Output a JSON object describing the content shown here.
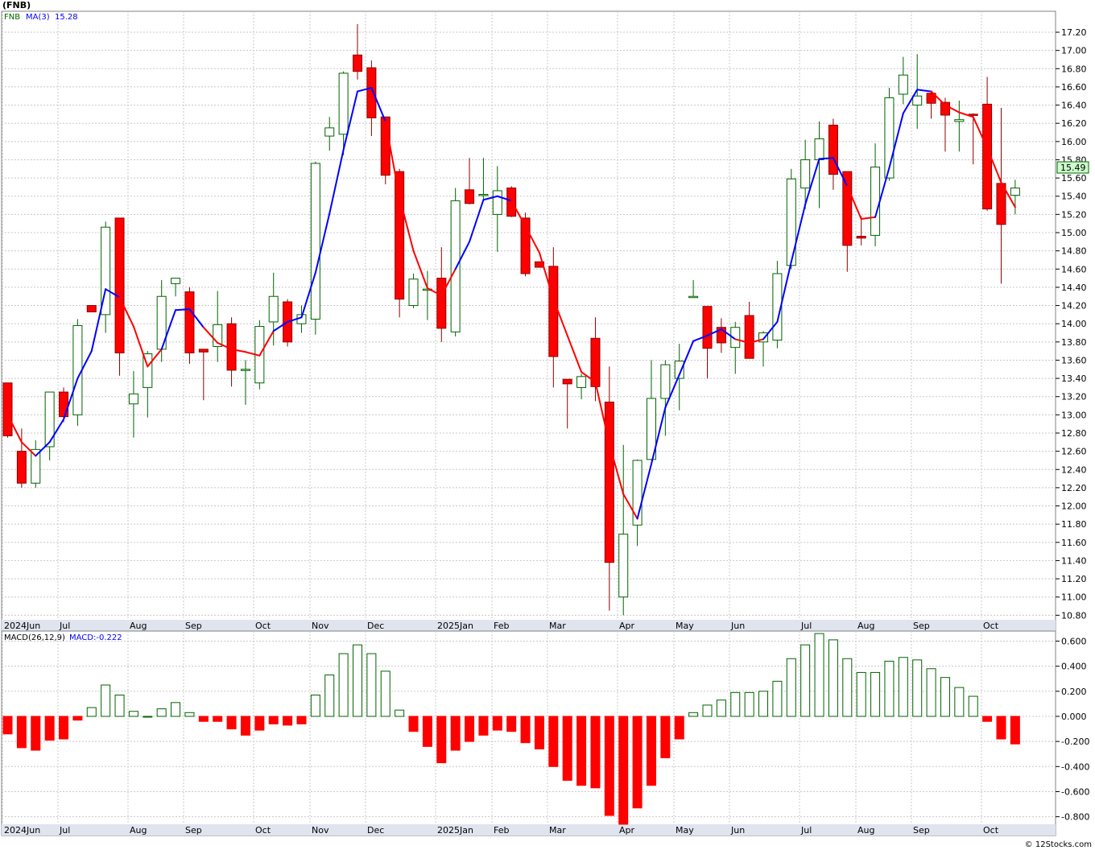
{
  "title": "(FNB)",
  "watermark": "© 12Stocks.com",
  "colors": {
    "up": "#ffffff",
    "down": "#ff0000",
    "upStroke": "#006400",
    "downStroke": "#8b0000",
    "maUp": "#0000ff",
    "maDown": "#ff0000",
    "macdPos": "#006400",
    "macdNeg": "#ff0000",
    "lastPriceBg": "#ccffcc"
  },
  "chart_data": [
    {
      "type": "candlestick",
      "legend": {
        "symbol": "FNB",
        "ma_label": "MA(3)",
        "ma_value": "15.28"
      },
      "last_price": "15.49",
      "ylim": [
        10.75,
        17.43
      ],
      "yticks": [
        "10.80",
        "11.00",
        "11.20",
        "11.40",
        "11.60",
        "11.80",
        "12.00",
        "12.20",
        "12.40",
        "12.60",
        "12.80",
        "13.00",
        "13.20",
        "13.40",
        "13.60",
        "13.80",
        "14.00",
        "14.20",
        "14.40",
        "14.60",
        "14.80",
        "15.00",
        "15.20",
        "15.40",
        "15.60",
        "15.80",
        "16.00",
        "16.20",
        "16.40",
        "16.60",
        "16.80",
        "17.00",
        "17.20"
      ],
      "months": [
        {
          "label": "2024Jun",
          "index": 0
        },
        {
          "label": "Jul",
          "index": 4
        },
        {
          "label": "Aug",
          "index": 9
        },
        {
          "label": "Sep",
          "index": 13
        },
        {
          "label": "Oct",
          "index": 18
        },
        {
          "label": "Nov",
          "index": 22
        },
        {
          "label": "Dec",
          "index": 26
        },
        {
          "label": "2025Jan",
          "index": 31
        },
        {
          "label": "Feb",
          "index": 35
        },
        {
          "label": "Mar",
          "index": 39
        },
        {
          "label": "Apr",
          "index": 44
        },
        {
          "label": "May",
          "index": 48
        },
        {
          "label": "Jun",
          "index": 52
        },
        {
          "label": "Jul",
          "index": 57
        },
        {
          "label": "Aug",
          "index": 61
        },
        {
          "label": "Sep",
          "index": 65
        },
        {
          "label": "Oct",
          "index": 70
        }
      ],
      "candles": [
        {
          "o": 13.35,
          "h": 13.35,
          "l": 12.75,
          "c": 12.77
        },
        {
          "o": 12.6,
          "h": 12.85,
          "l": 12.2,
          "c": 12.25
        },
        {
          "o": 12.25,
          "h": 12.72,
          "l": 12.2,
          "c": 12.62
        },
        {
          "o": 12.65,
          "h": 13.25,
          "l": 12.5,
          "c": 13.25
        },
        {
          "o": 13.25,
          "h": 13.3,
          "l": 12.92,
          "c": 12.98
        },
        {
          "o": 13.0,
          "h": 14.05,
          "l": 12.88,
          "c": 13.98
        },
        {
          "o": 14.2,
          "h": 14.2,
          "l": 14.13,
          "c": 14.13
        },
        {
          "o": 14.1,
          "h": 15.12,
          "l": 13.9,
          "c": 15.06
        },
        {
          "o": 15.16,
          "h": 15.16,
          "l": 13.43,
          "c": 13.68
        },
        {
          "o": 13.12,
          "h": 13.48,
          "l": 12.75,
          "c": 13.23
        },
        {
          "o": 13.3,
          "h": 13.7,
          "l": 12.97,
          "c": 13.67
        },
        {
          "o": 13.72,
          "h": 14.48,
          "l": 13.58,
          "c": 14.3
        },
        {
          "o": 14.44,
          "h": 14.5,
          "l": 14.3,
          "c": 14.5
        },
        {
          "o": 14.35,
          "h": 14.4,
          "l": 13.56,
          "c": 13.68
        },
        {
          "o": 13.72,
          "h": 13.72,
          "l": 13.16,
          "c": 13.69
        },
        {
          "o": 13.75,
          "h": 14.36,
          "l": 13.58,
          "c": 13.99
        },
        {
          "o": 14.0,
          "h": 14.07,
          "l": 13.31,
          "c": 13.49
        },
        {
          "o": 13.5,
          "h": 13.6,
          "l": 13.11,
          "c": 13.5
        },
        {
          "o": 13.35,
          "h": 14.04,
          "l": 13.28,
          "c": 13.97
        },
        {
          "o": 14.02,
          "h": 14.56,
          "l": 13.76,
          "c": 14.3
        },
        {
          "o": 14.24,
          "h": 14.27,
          "l": 13.75,
          "c": 13.8
        },
        {
          "o": 14.0,
          "h": 14.2,
          "l": 13.9,
          "c": 14.1
        },
        {
          "o": 14.05,
          "h": 15.78,
          "l": 13.88,
          "c": 15.76
        },
        {
          "o": 16.06,
          "h": 16.27,
          "l": 15.9,
          "c": 16.15
        },
        {
          "o": 16.08,
          "h": 16.77,
          "l": 15.85,
          "c": 16.75
        },
        {
          "o": 16.95,
          "h": 17.29,
          "l": 16.68,
          "c": 16.77
        },
        {
          "o": 16.81,
          "h": 16.89,
          "l": 16.06,
          "c": 16.26
        },
        {
          "o": 16.27,
          "h": 16.27,
          "l": 15.53,
          "c": 15.63
        },
        {
          "o": 15.67,
          "h": 15.7,
          "l": 14.07,
          "c": 14.27
        },
        {
          "o": 14.2,
          "h": 14.55,
          "l": 14.17,
          "c": 14.49
        },
        {
          "o": 14.38,
          "h": 14.58,
          "l": 14.04,
          "c": 14.38
        },
        {
          "o": 14.5,
          "h": 14.84,
          "l": 13.8,
          "c": 13.95
        },
        {
          "o": 13.91,
          "h": 15.49,
          "l": 13.86,
          "c": 15.35
        },
        {
          "o": 15.47,
          "h": 15.82,
          "l": 15.31,
          "c": 15.32
        },
        {
          "o": 15.42,
          "h": 15.82,
          "l": 15.37,
          "c": 15.42
        },
        {
          "o": 15.2,
          "h": 15.73,
          "l": 14.79,
          "c": 15.46
        },
        {
          "o": 15.49,
          "h": 15.51,
          "l": 15.17,
          "c": 15.18
        },
        {
          "o": 15.16,
          "h": 15.22,
          "l": 14.52,
          "c": 14.55
        },
        {
          "o": 14.68,
          "h": 14.68,
          "l": 14.62,
          "c": 14.62
        },
        {
          "o": 14.63,
          "h": 14.84,
          "l": 13.3,
          "c": 13.64
        },
        {
          "o": 13.39,
          "h": 13.39,
          "l": 12.85,
          "c": 13.34
        },
        {
          "o": 13.3,
          "h": 13.45,
          "l": 13.17,
          "c": 13.42
        },
        {
          "o": 13.84,
          "h": 14.07,
          "l": 13.15,
          "c": 13.31
        },
        {
          "o": 13.14,
          "h": 13.53,
          "l": 10.85,
          "c": 11.38
        },
        {
          "o": 11.0,
          "h": 12.67,
          "l": 10.8,
          "c": 11.69
        },
        {
          "o": 11.79,
          "h": 12.51,
          "l": 11.56,
          "c": 12.5
        },
        {
          "o": 12.51,
          "h": 13.6,
          "l": 12.5,
          "c": 13.18
        },
        {
          "o": 13.18,
          "h": 13.6,
          "l": 12.77,
          "c": 13.55
        },
        {
          "o": 13.4,
          "h": 13.78,
          "l": 13.05,
          "c": 13.59
        },
        {
          "o": 14.3,
          "h": 14.48,
          "l": 14.3,
          "c": 14.3
        },
        {
          "o": 14.19,
          "h": 14.19,
          "l": 13.4,
          "c": 13.73
        },
        {
          "o": 13.96,
          "h": 14.06,
          "l": 13.68,
          "c": 13.79
        },
        {
          "o": 13.74,
          "h": 14.02,
          "l": 13.45,
          "c": 13.96
        },
        {
          "o": 14.09,
          "h": 14.24,
          "l": 13.62,
          "c": 13.62
        },
        {
          "o": 13.8,
          "h": 13.92,
          "l": 13.53,
          "c": 13.9
        },
        {
          "o": 13.82,
          "h": 14.69,
          "l": 13.73,
          "c": 14.55
        },
        {
          "o": 14.64,
          "h": 15.7,
          "l": 14.6,
          "c": 15.59
        },
        {
          "o": 15.49,
          "h": 16.02,
          "l": 15.26,
          "c": 15.8
        },
        {
          "o": 15.8,
          "h": 16.22,
          "l": 15.27,
          "c": 16.03
        },
        {
          "o": 16.18,
          "h": 16.25,
          "l": 15.47,
          "c": 15.64
        },
        {
          "o": 15.67,
          "h": 15.67,
          "l": 14.57,
          "c": 14.86
        },
        {
          "o": 14.96,
          "h": 15.18,
          "l": 14.86,
          "c": 14.94
        },
        {
          "o": 14.97,
          "h": 15.98,
          "l": 14.85,
          "c": 15.72
        },
        {
          "o": 15.6,
          "h": 16.59,
          "l": 15.57,
          "c": 16.48
        },
        {
          "o": 16.52,
          "h": 16.93,
          "l": 16.41,
          "c": 16.73
        },
        {
          "o": 16.4,
          "h": 16.96,
          "l": 16.14,
          "c": 16.5
        },
        {
          "o": 16.53,
          "h": 16.56,
          "l": 16.25,
          "c": 16.42
        },
        {
          "o": 16.43,
          "h": 16.48,
          "l": 15.89,
          "c": 16.29
        },
        {
          "o": 16.22,
          "h": 16.45,
          "l": 15.89,
          "c": 16.24
        },
        {
          "o": 16.3,
          "h": 16.31,
          "l": 15.75,
          "c": 16.29
        },
        {
          "o": 16.41,
          "h": 16.71,
          "l": 15.24,
          "c": 15.26
        },
        {
          "o": 15.54,
          "h": 16.37,
          "l": 14.44,
          "c": 15.09
        },
        {
          "o": 15.41,
          "h": 15.58,
          "l": 15.2,
          "c": 15.49
        }
      ],
      "ma3": [
        13.0,
        12.7,
        12.55,
        12.7,
        12.95,
        13.4,
        13.7,
        14.38,
        14.29,
        13.97,
        13.53,
        13.72,
        14.15,
        14.16,
        13.96,
        13.79,
        13.72,
        13.69,
        13.65,
        13.92,
        14.02,
        14.07,
        14.56,
        15.21,
        15.91,
        16.55,
        16.59,
        16.22,
        15.39,
        14.8,
        14.39,
        14.31,
        14.6,
        14.9,
        15.36,
        15.4,
        15.35,
        15.07,
        14.78,
        14.27,
        13.87,
        13.47,
        13.36,
        12.68,
        12.13,
        11.86,
        12.46,
        13.08,
        13.44,
        13.81,
        13.87,
        13.94,
        13.83,
        13.79,
        13.83,
        14.02,
        14.68,
        15.31,
        15.81,
        15.82,
        15.51,
        15.15,
        15.17,
        15.71,
        16.31,
        16.57,
        16.55,
        16.4,
        16.32,
        16.27,
        15.93,
        15.55,
        15.28
      ],
      "ma_trend_up": [
        false,
        false,
        true,
        true,
        true,
        true,
        true,
        true,
        false,
        false,
        false,
        true,
        true,
        true,
        false,
        false,
        false,
        false,
        false,
        true,
        true,
        true,
        true,
        true,
        true,
        true,
        true,
        false,
        false,
        false,
        false,
        false,
        true,
        true,
        true,
        true,
        false,
        false,
        false,
        false,
        false,
        false,
        false,
        false,
        false,
        true,
        true,
        true,
        true,
        true,
        true,
        true,
        false,
        false,
        true,
        true,
        true,
        true,
        true,
        true,
        false,
        false,
        true,
        true,
        true,
        true,
        false,
        false,
        false,
        false,
        false,
        false,
        false
      ]
    },
    {
      "type": "bar",
      "legend": {
        "label": "MACD(26,12,9)",
        "value_label": "MACD:-0.222"
      },
      "ylim": [
        -0.86,
        0.68
      ],
      "yticks": [
        "0.600",
        "0.400",
        "0.200",
        "0.000",
        "-0.200",
        "-0.400",
        "-0.600",
        "-0.800"
      ],
      "values": [
        -0.14,
        -0.25,
        -0.27,
        -0.19,
        -0.18,
        -0.03,
        0.07,
        0.25,
        0.17,
        0.04,
        0.0,
        0.06,
        0.11,
        0.03,
        -0.04,
        -0.04,
        -0.1,
        -0.15,
        -0.11,
        -0.06,
        -0.07,
        -0.06,
        0.17,
        0.33,
        0.5,
        0.57,
        0.5,
        0.36,
        0.05,
        -0.12,
        -0.24,
        -0.37,
        -0.27,
        -0.2,
        -0.15,
        -0.11,
        -0.12,
        -0.21,
        -0.26,
        -0.4,
        -0.51,
        -0.55,
        -0.57,
        -0.79,
        -0.86,
        -0.73,
        -0.55,
        -0.33,
        -0.18,
        0.03,
        0.09,
        0.13,
        0.19,
        0.19,
        0.2,
        0.28,
        0.46,
        0.57,
        0.66,
        0.61,
        0.46,
        0.35,
        0.35,
        0.44,
        0.47,
        0.45,
        0.38,
        0.31,
        0.23,
        0.16,
        -0.04,
        -0.18,
        -0.22
      ]
    }
  ]
}
